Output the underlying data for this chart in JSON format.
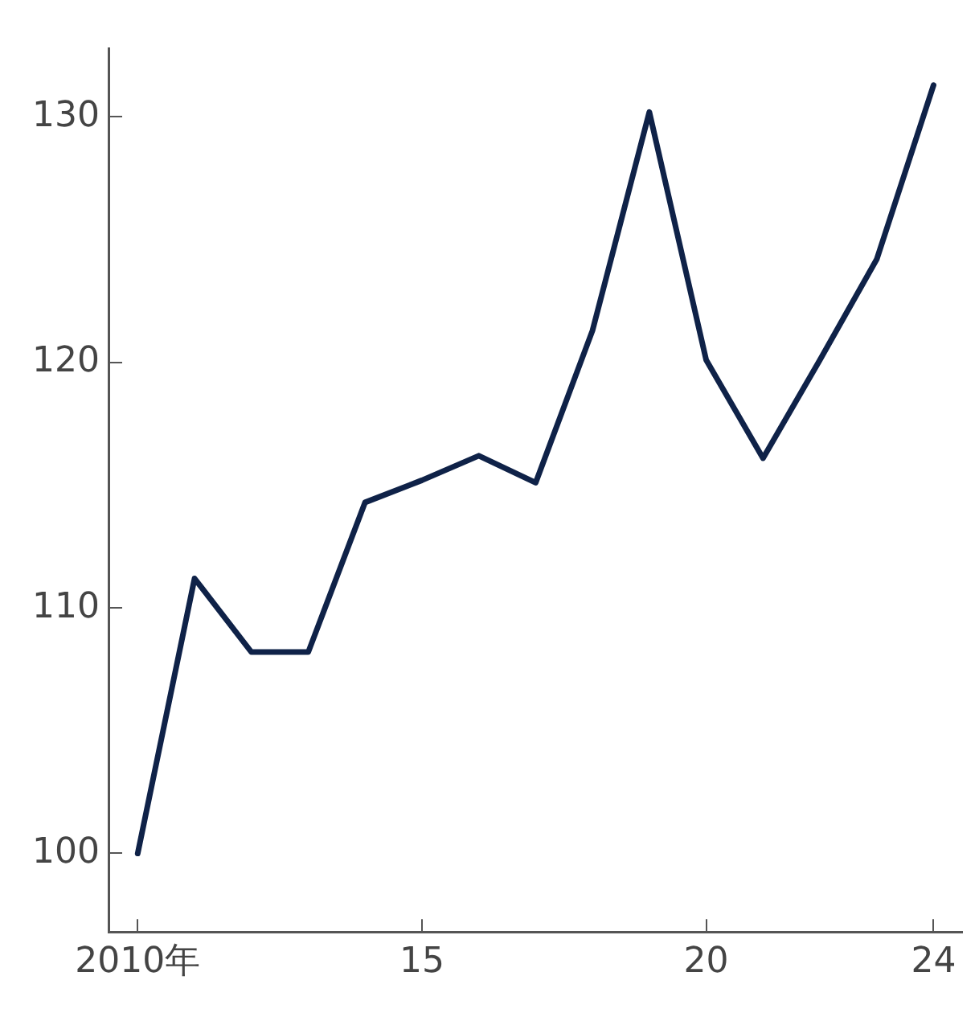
{
  "chart_data": {
    "type": "line",
    "x": [
      2010,
      2011,
      2012,
      2013,
      2014,
      2015,
      2016,
      2017,
      2018,
      2019,
      2020,
      2021,
      2022,
      2023,
      2024
    ],
    "series": [
      {
        "color": "#0f2248",
        "values": [
          100,
          111.2,
          108.2,
          108.2,
          114.3,
          115.2,
          116.2,
          115.1,
          121.3,
          130.2,
          120.1,
          116.1,
          120.1,
          124.2,
          131.3
        ]
      }
    ],
    "xlim": [
      2009.5,
      2024.5
    ],
    "xticks": [
      {
        "value": 2010,
        "label": "2010年"
      },
      {
        "value": 2015,
        "label": "15"
      },
      {
        "value": 2020,
        "label": "20"
      },
      {
        "value": 2024,
        "label": "24"
      }
    ],
    "ylim": [
      96.8,
      132.8
    ],
    "yticks": [
      100,
      110,
      120,
      130
    ],
    "grid": false,
    "legend": false,
    "marker": "none",
    "line_style": "solid"
  }
}
